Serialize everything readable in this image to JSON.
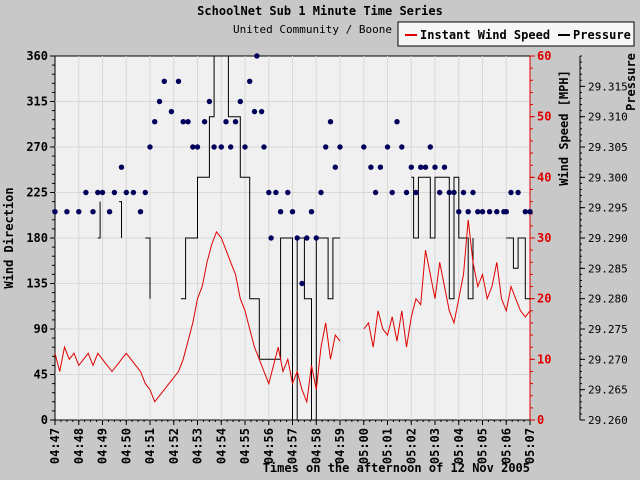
{
  "chart_data": {
    "type": "line",
    "title": "SchoolNet Sub 1 Minute Time Series",
    "subtitle": "United Community / Boone",
    "xlabel": "Times on the afternoon of 12 Nov 2005",
    "ylabel_left": "Wind Direction",
    "ylabel_right": "Wind Speed [MPH]",
    "ylabel_pressure": "Pressure",
    "legend_placement": "top-right",
    "grid": true,
    "x_ticks": [
      "04:47",
      "04:48",
      "04:49",
      "04:50",
      "04:51",
      "04:52",
      "04:53",
      "04:54",
      "04:55",
      "04:56",
      "04:57",
      "04:58",
      "04:59",
      "05:00",
      "05:01",
      "05:02",
      "05:03",
      "05:04",
      "05:05",
      "05:06",
      "05:07"
    ],
    "xlim": [
      "04:47",
      "05:07"
    ],
    "direction": {
      "ylim": [
        0,
        360
      ],
      "ticks": [
        0,
        45,
        90,
        135,
        180,
        225,
        270,
        315,
        360
      ],
      "points": [
        [
          "04:47",
          206
        ],
        [
          "04:47.5",
          206
        ],
        [
          "04:48",
          206
        ],
        [
          "04:48.3",
          225
        ],
        [
          "04:48.6",
          206
        ],
        [
          "04:48.8",
          225
        ],
        [
          "04:49",
          225
        ],
        [
          "04:49.3",
          206
        ],
        [
          "04:49.5",
          225
        ],
        [
          "04:49.8",
          250
        ],
        [
          "04:50",
          225
        ],
        [
          "04:50.3",
          225
        ],
        [
          "04:50.6",
          206
        ],
        [
          "04:50.8",
          225
        ],
        [
          "04:51",
          270
        ],
        [
          "04:51.2",
          295
        ],
        [
          "04:51.4",
          315
        ],
        [
          "04:51.6",
          335
        ],
        [
          "04:51.9",
          305
        ],
        [
          "04:52.2",
          335
        ],
        [
          "04:52.4",
          295
        ],
        [
          "04:52.6",
          295
        ],
        [
          "04:52.8",
          270
        ],
        [
          "04:53",
          270
        ],
        [
          "04:53.3",
          295
        ],
        [
          "04:53.5",
          315
        ],
        [
          "04:53.7",
          270
        ],
        [
          "04:54",
          270
        ],
        [
          "04:54.2",
          295
        ],
        [
          "04:54.4",
          270
        ],
        [
          "04:54.6",
          295
        ],
        [
          "04:54.8",
          315
        ],
        [
          "04:55",
          270
        ],
        [
          "04:55.2",
          335
        ],
        [
          "04:55.4",
          305
        ],
        [
          "04:55.5",
          360
        ],
        [
          "04:55.7",
          305
        ],
        [
          "04:55.8",
          270
        ],
        [
          "04:56",
          225
        ],
        [
          "04:56.1",
          180
        ],
        [
          "04:56.3",
          225
        ],
        [
          "04:56.5",
          206
        ],
        [
          "04:56.8",
          225
        ],
        [
          "04:57",
          206
        ],
        [
          "04:57.2",
          180
        ],
        [
          "04:57.4",
          135
        ],
        [
          "04:57.6",
          180
        ],
        [
          "04:57.8",
          206
        ],
        [
          "04:58",
          180
        ],
        [
          "04:58.2",
          225
        ],
        [
          "04:58.4",
          270
        ],
        [
          "04:58.6",
          295
        ],
        [
          "04:58.8",
          250
        ],
        [
          "04:59",
          270
        ],
        [
          "05:00",
          270
        ],
        [
          "05:00.3",
          250
        ],
        [
          "05:00.5",
          225
        ],
        [
          "05:00.7",
          250
        ],
        [
          "05:01",
          270
        ],
        [
          "05:01.2",
          225
        ],
        [
          "05:01.4",
          295
        ],
        [
          "05:01.6",
          270
        ],
        [
          "05:01.8",
          225
        ],
        [
          "05:02",
          250
        ],
        [
          "05:02.2",
          225
        ],
        [
          "05:02.4",
          250
        ],
        [
          "05:02.6",
          250
        ],
        [
          "05:02.8",
          270
        ],
        [
          "05:03",
          250
        ],
        [
          "05:03.2",
          225
        ],
        [
          "05:03.4",
          250
        ],
        [
          "05:03.6",
          225
        ],
        [
          "05:03.8",
          225
        ],
        [
          "05:04",
          206
        ],
        [
          "05:04.2",
          225
        ],
        [
          "05:04.4",
          206
        ],
        [
          "05:04.6",
          225
        ],
        [
          "05:04.8",
          206
        ],
        [
          "05:05",
          206
        ],
        [
          "05:05.3",
          206
        ],
        [
          "05:05.6",
          206
        ],
        [
          "05:05.9",
          206
        ],
        [
          "05:06",
          206
        ],
        [
          "05:06.2",
          225
        ],
        [
          "05:06.5",
          225
        ],
        [
          "05:06.8",
          206
        ],
        [
          "05:07",
          206
        ]
      ]
    },
    "series": [
      {
        "name": "Instant Wind Speed",
        "color": "#e00000",
        "axis": "wind_speed",
        "ylim": [
          0,
          60
        ],
        "ticks": [
          0,
          10,
          20,
          30,
          40,
          50,
          60
        ],
        "points": [
          [
            "04:47",
            11
          ],
          [
            "04:47.2",
            8
          ],
          [
            "04:47.4",
            12
          ],
          [
            "04:47.6",
            10
          ],
          [
            "04:47.8",
            11
          ],
          [
            "04:48",
            9
          ],
          [
            "04:48.2",
            10
          ],
          [
            "04:48.4",
            11
          ],
          [
            "04:48.6",
            9
          ],
          [
            "04:48.8",
            11
          ],
          [
            "04:49",
            10
          ],
          [
            "04:49.2",
            9
          ],
          [
            "04:49.4",
            8
          ],
          [
            "04:49.6",
            9
          ],
          [
            "04:49.8",
            10
          ],
          [
            "04:50",
            11
          ],
          [
            "04:50.2",
            10
          ],
          [
            "04:50.4",
            9
          ],
          [
            "04:50.6",
            8
          ],
          [
            "04:50.8",
            6
          ],
          [
            "04:51",
            5
          ],
          [
            "04:51.2",
            3
          ],
          [
            "04:51.4",
            4
          ],
          [
            "04:51.6",
            5
          ],
          [
            "04:51.8",
            6
          ],
          [
            "04:52",
            7
          ],
          [
            "04:52.2",
            8
          ],
          [
            "04:52.4",
            10
          ],
          [
            "04:52.6",
            13
          ],
          [
            "04:52.8",
            16
          ],
          [
            "04:53",
            20
          ],
          [
            "04:53.2",
            22
          ],
          [
            "04:53.4",
            26
          ],
          [
            "04:53.6",
            29
          ],
          [
            "04:53.8",
            31
          ],
          [
            "04:54",
            30
          ],
          [
            "04:54.2",
            28
          ],
          [
            "04:54.4",
            26
          ],
          [
            "04:54.6",
            24
          ],
          [
            "04:54.8",
            20
          ],
          [
            "04:55",
            18
          ],
          [
            "04:55.2",
            15
          ],
          [
            "04:55.4",
            12
          ],
          [
            "04:55.6",
            10
          ],
          [
            "04:55.8",
            8
          ],
          [
            "04:56",
            6
          ],
          [
            "04:56.2",
            9
          ],
          [
            "04:56.4",
            12
          ],
          [
            "04:56.6",
            8
          ],
          [
            "04:56.8",
            10
          ],
          [
            "04:57",
            6
          ],
          [
            "04:57.2",
            8
          ],
          [
            "04:57.4",
            5
          ],
          [
            "04:57.6",
            3
          ],
          [
            "04:57.8",
            9
          ],
          [
            "04:58",
            5
          ],
          [
            "04:58.2",
            12
          ],
          [
            "04:58.4",
            16
          ],
          [
            "04:58.6",
            10
          ],
          [
            "04:58.8",
            14
          ],
          [
            "04:59",
            13
          ],
          [
            "05:00",
            15
          ],
          [
            "05:00.2",
            16
          ],
          [
            "05:00.4",
            12
          ],
          [
            "05:00.6",
            18
          ],
          [
            "05:00.8",
            15
          ],
          [
            "05:01",
            14
          ],
          [
            "05:01.2",
            17
          ],
          [
            "05:01.4",
            13
          ],
          [
            "05:01.6",
            18
          ],
          [
            "05:01.8",
            12
          ],
          [
            "05:02",
            17
          ],
          [
            "05:02.2",
            20
          ],
          [
            "05:02.4",
            19
          ],
          [
            "05:02.6",
            28
          ],
          [
            "05:02.8",
            24
          ],
          [
            "05:03",
            20
          ],
          [
            "05:03.2",
            26
          ],
          [
            "05:03.4",
            22
          ],
          [
            "05:03.6",
            18
          ],
          [
            "05:03.8",
            16
          ],
          [
            "05:04",
            20
          ],
          [
            "05:04.2",
            24
          ],
          [
            "05:04.4",
            33
          ],
          [
            "05:04.6",
            26
          ],
          [
            "05:04.8",
            22
          ],
          [
            "05:05",
            24
          ],
          [
            "05:05.2",
            20
          ],
          [
            "05:05.4",
            22
          ],
          [
            "05:05.6",
            26
          ],
          [
            "05:05.8",
            20
          ],
          [
            "05:06",
            18
          ],
          [
            "05:06.2",
            22
          ],
          [
            "05:06.4",
            20
          ],
          [
            "05:06.6",
            18
          ],
          [
            "05:06.8",
            17
          ],
          [
            "05:07",
            18
          ]
        ]
      },
      {
        "name": "Pressure",
        "color": "#000000",
        "axis": "pressure",
        "ylim": [
          29.26,
          29.32
        ],
        "ticks": [
          29.26,
          29.265,
          29.27,
          29.275,
          29.28,
          29.285,
          29.29,
          29.295,
          29.3,
          29.305,
          29.31,
          29.315
        ],
        "points": [
          [
            "04:47",
            29.29
          ],
          [
            "04:48.8",
            29.29
          ],
          [
            "04:48.9",
            29.296
          ],
          [
            "04:49.7",
            29.296
          ],
          [
            "04:49.8",
            29.29
          ],
          [
            "04:50.8",
            29.29
          ],
          [
            "04:51",
            29.28
          ],
          [
            "04:52.3",
            29.28
          ],
          [
            "04:52.5",
            29.29
          ],
          [
            "04:53",
            29.3
          ],
          [
            "04:53.5",
            29.31
          ],
          [
            "04:53.7",
            29.32
          ],
          [
            "04:54",
            29.32
          ],
          [
            "04:54.3",
            29.31
          ],
          [
            "04:54.8",
            29.3
          ],
          [
            "04:55.2",
            29.28
          ],
          [
            "04:55.6",
            29.27
          ],
          [
            "04:56.2",
            29.27
          ],
          [
            "04:56.5",
            29.29
          ],
          [
            "04:56.8",
            29.29
          ],
          [
            "04:57",
            29.26
          ],
          [
            "04:57.2",
            29.29
          ],
          [
            "04:57.5",
            29.28
          ],
          [
            "04:57.8",
            29.26
          ],
          [
            "04:58",
            29.29
          ],
          [
            "04:58.3",
            29.29
          ],
          [
            "04:58.5",
            29.28
          ],
          [
            "04:58.7",
            29.29
          ],
          [
            "04:59",
            29.29
          ],
          [
            "05:00",
            29.3
          ],
          [
            "05:02",
            29.3
          ],
          [
            "05:02.1",
            29.29
          ],
          [
            "05:02.3",
            29.3
          ],
          [
            "05:02.6",
            29.3
          ],
          [
            "05:02.8",
            29.29
          ],
          [
            "05:03",
            29.3
          ],
          [
            "05:03.4",
            29.3
          ],
          [
            "05:03.6",
            29.28
          ],
          [
            "05:03.8",
            29.3
          ],
          [
            "05:04",
            29.29
          ],
          [
            "05:04.2",
            29.29
          ],
          [
            "05:04.4",
            29.28
          ],
          [
            "05:04.6",
            29.29
          ],
          [
            "05:06",
            29.29
          ],
          [
            "05:06.3",
            29.285
          ],
          [
            "05:06.5",
            29.29
          ],
          [
            "05:06.8",
            29.28
          ],
          [
            "05:07",
            29.28
          ]
        ]
      }
    ],
    "colors": {
      "background": "#c8c8c8",
      "plot_background": "#f0f0f0",
      "direction_marker": "#00005a",
      "wind_axis": "#e00000"
    }
  }
}
